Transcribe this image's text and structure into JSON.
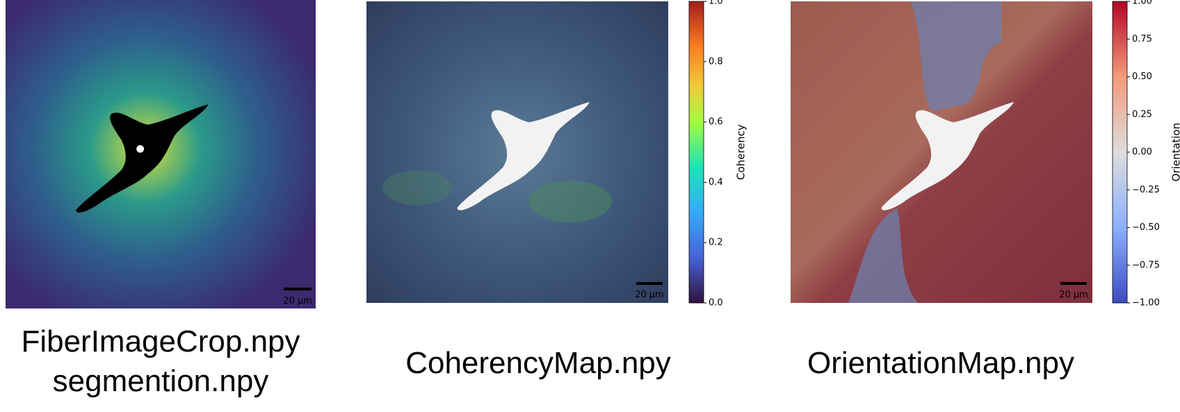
{
  "panels": [
    {
      "caption": [
        "FiberImageCrop.npy",
        "segmention.npy"
      ],
      "scale_bar": "20 µm"
    },
    {
      "caption": [
        "CoherencyMap.npy"
      ],
      "scale_bar": "20 µm",
      "colorbar": {
        "label": "Coherency",
        "lim": [
          0,
          1
        ],
        "ticks": [
          {
            "value": 0,
            "label": "0.0"
          },
          0.2,
          0.4,
          0.6,
          0.8,
          {
            "value": 1,
            "label": "1.0"
          }
        ]
      }
    },
    {
      "caption": [
        "OrientationMap.npy"
      ],
      "scale_bar": "20 µm",
      "colorbar": {
        "label": "Orientation",
        "lim": [
          -1,
          1
        ],
        "ticks": [
          {
            "value": -1,
            "label": "−1.00"
          },
          {
            "value": -0.75,
            "label": "−0.75"
          },
          {
            "value": -0.5,
            "label": "−0.50"
          },
          {
            "value": -0.25,
            "label": "−0.25"
          },
          {
            "value": 0,
            "label": "0.00"
          },
          {
            "value": 0.25,
            "label": "0.25"
          },
          {
            "value": 0.5,
            "label": "0.50"
          },
          {
            "value": 0.75,
            "label": "0.75"
          },
          {
            "value": 1,
            "label": "1.00"
          }
        ]
      }
    }
  ]
}
